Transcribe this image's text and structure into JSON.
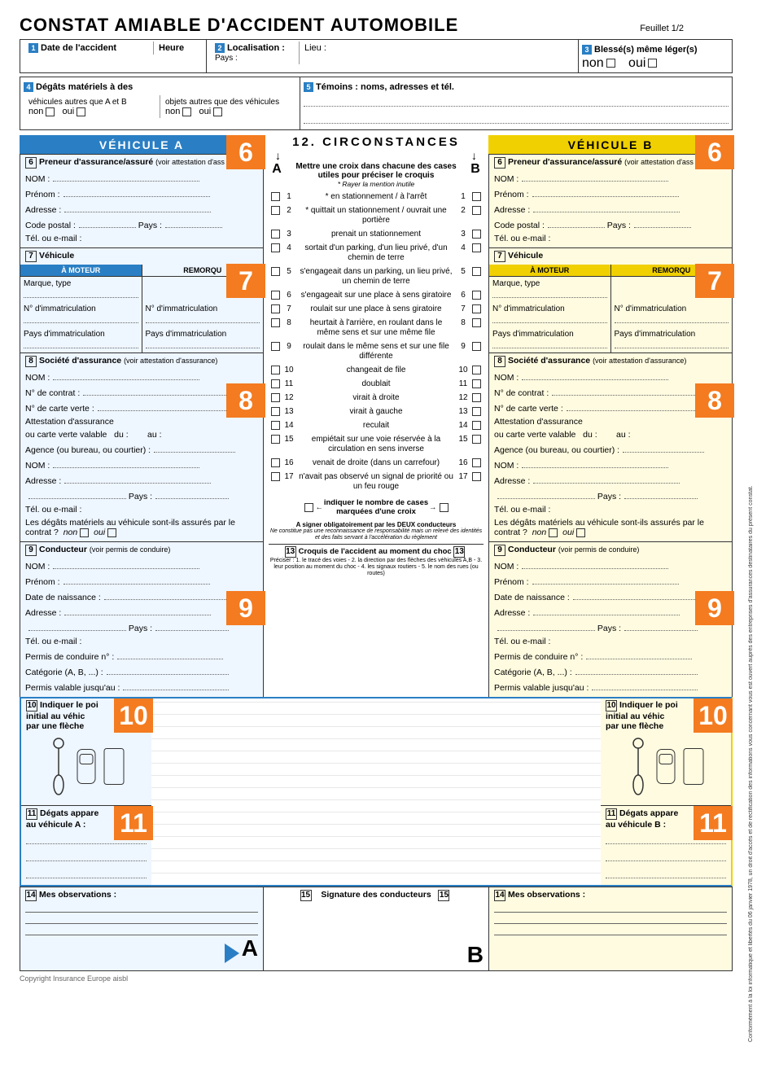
{
  "title": "CONSTAT AMIABLE D'ACCIDENT AUTOMOBILE",
  "feuillet": "Feuillet 1/2",
  "top": {
    "n1": "1",
    "date": "Date de l'accident",
    "heure": "Heure",
    "n2": "2",
    "loc": "Localisation :",
    "lieu": "Lieu :",
    "pays": "Pays :",
    "n3": "3",
    "blesse": "Blessé(s) même léger(s)",
    "non": "non",
    "oui": "oui",
    "n4": "4",
    "degats": "Dégâts matériels à des",
    "deg_a": "véhicules autres que A et B",
    "deg_b": "objets autres que des véhicules",
    "n5": "5",
    "temoins": "Témoins : noms, adresses et tél."
  },
  "veh": {
    "a": "VÉHICULE  A",
    "b": "VÉHICULE  B"
  },
  "s6": {
    "n": "6",
    "h": "Preneur d'assurance/assuré",
    "note": "(voir attestation d'ass",
    "nom": "NOM :",
    "prenom": "Prénom :",
    "adr": "Adresse :",
    "cp": "Code postal :",
    "pays": "Pays :",
    "tel": "Tél. ou e-mail :"
  },
  "s7": {
    "n": "7",
    "h": "Véhicule",
    "mot": "À MOTEUR",
    "rem": "REMORQU",
    "marque": "Marque, type",
    "immat": "N° d'immatriculation",
    "pimmat": "Pays d'immatriculation"
  },
  "s8": {
    "n": "8",
    "h": "Société d'assurance",
    "note": "(voir attestation d'assurance)",
    "nom": "NOM :",
    "contrat": "N° de contrat :",
    "carte": "N° de carte verte :",
    "att": "Attestation d'assurance",
    "valable": "ou carte verte valable",
    "du": "du :",
    "au": "au :",
    "agence": "Agence (ou bureau, ou courtier) :",
    "adr": "Adresse :",
    "pays": "Pays :",
    "tel": "Tél. ou e-mail :",
    "q": "Les dégâts matériels au véhicule sont-ils assurés par le contrat ?",
    "non": "non",
    "oui": "oui"
  },
  "s9": {
    "n": "9",
    "h": "Conducteur",
    "note": "(voir permis de conduire)",
    "nom": "NOM :",
    "prenom": "Prénom :",
    "naiss": "Date de naissance :",
    "adr": "Adresse :",
    "pays": "Pays :",
    "tel": "Tél. ou e-mail :",
    "permis": "Permis de conduire n° :",
    "cat": "Catégorie (A, B, ...) :",
    "val": "Permis valable jusqu'au :"
  },
  "s10": {
    "n": "10",
    "h1": "Indiquer le poi",
    "h2": "initial au véhic",
    "h3": "par une flèche"
  },
  "s11": {
    "n": "11",
    "ha": "Dégats appare",
    "hb": "au véhicule A :",
    "hc": "au véhicule B :"
  },
  "s14": {
    "n": "14",
    "h": "Mes observations :"
  },
  "circ": {
    "n": "12.",
    "title": "CIRCONSTANCES",
    "sub": "Mettre une croix dans chacune des cases utiles pour préciser le croquis",
    "note": "* Rayer la mention inutile",
    "a": "A",
    "b": "B",
    "items": [
      {
        "n": "1",
        "t": "* en stationnement / à l'arrêt"
      },
      {
        "n": "2",
        "t": "* quittait un stationnement / ouvrait une portière"
      },
      {
        "n": "3",
        "t": "prenait un stationnement"
      },
      {
        "n": "4",
        "t": "sortait d'un parking, d'un lieu privé, d'un chemin de terre"
      },
      {
        "n": "5",
        "t": "s'engageait dans un parking, un lieu privé, un chemin de terre"
      },
      {
        "n": "6",
        "t": "s'engageait sur une place à sens giratoire"
      },
      {
        "n": "7",
        "t": "roulait sur une place à sens giratoire"
      },
      {
        "n": "8",
        "t": "heurtait à l'arrière, en roulant dans le même sens et sur une même file"
      },
      {
        "n": "9",
        "t": "roulait dans le même sens et sur une file différente"
      },
      {
        "n": "10",
        "t": "changeait de file"
      },
      {
        "n": "11",
        "t": "doublait"
      },
      {
        "n": "12",
        "t": "virait à droite"
      },
      {
        "n": "13",
        "t": "virait à gauche"
      },
      {
        "n": "14",
        "t": "reculait"
      },
      {
        "n": "15",
        "t": "empiétait sur une voie réservée à la circulation en sens inverse"
      },
      {
        "n": "16",
        "t": "venait de droite (dans un carrefour)"
      },
      {
        "n": "17",
        "t": "n'avait pas observé un signal de priorité ou un feu rouge"
      }
    ],
    "ind": "indiquer le nombre de cases marquées d'une croix",
    "sign": "A signer obligatoirement par les DEUX conducteurs",
    "sign2": "Ne constitue pas une reconnaissance de responsabilité mais un relevé des identités et des faits servant à l'accélération du règlement",
    "n13": "13",
    "croquis": "Croquis de l'accident au moment du choc",
    "cnote": "Préciser : 1. le tracé des voies - 2. la direction par des flèches des véhicules A,B - 3. leur position au moment du choc - 4. les signaux routiers - 5. le nom des rues (ou routes)"
  },
  "sig": {
    "n": "15",
    "h": "Signature des conducteurs",
    "a": "A",
    "b": "B"
  },
  "side": "Conformément à la loi informatique et libertés du 06 janvier 1978, un droit d'accès et de rectification des informations vous concernant vous est ouvert auprès des entreprises d'assurances destinataires du présent constat.",
  "copy": "Copyright Insurance Europe aisbl",
  "badges": [
    "6",
    "7",
    "8",
    "9",
    "10",
    "11"
  ],
  "colors": {
    "blue": "#2a7fc4",
    "yellow": "#f0d000",
    "orange": "#f47b20"
  }
}
